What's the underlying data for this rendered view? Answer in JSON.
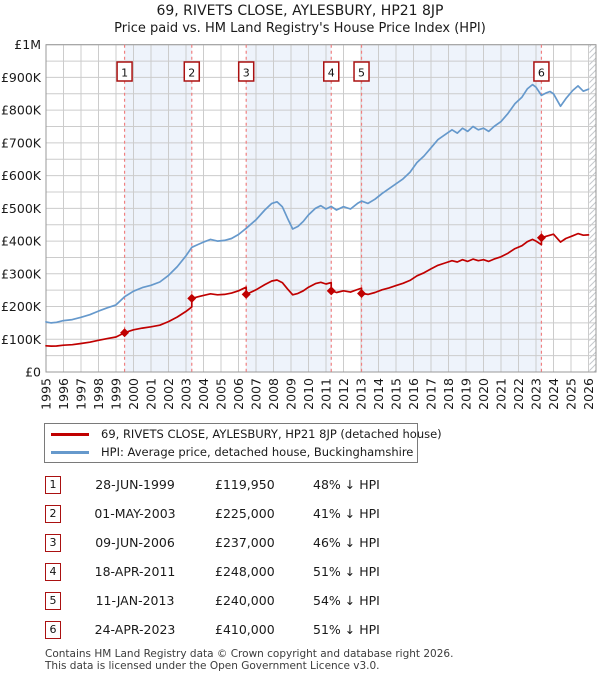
{
  "title": "69, RIVETS CLOSE, AYLESBURY, HP21 8JP",
  "subtitle": "Price paid vs. HM Land Registry's House Price Index (HPI)",
  "colors": {
    "property_red": "#c00000",
    "hpi_blue": "#6699cc",
    "band_fill": "#eef3fb",
    "grid": "#cccccc",
    "plot_border": "#999999",
    "sale_dash": "#f08080",
    "marker_box_border": "#aa1111",
    "hatch": "#c4c8cc"
  },
  "legend": {
    "entries": [
      {
        "label": "69, RIVETS CLOSE, AYLESBURY, HP21 8JP (detached house)",
        "color": "#c00000"
      },
      {
        "label": "HPI: Average price, detached house, Buckinghamshire",
        "color": "#6699cc"
      }
    ]
  },
  "chart_data": {
    "type": "line",
    "title": "69, RIVETS CLOSE, AYLESBURY, HP21 8JP",
    "subtitle": "Price paid vs. HM Land Registry's House Price Index (HPI)",
    "units": "GBP thousands",
    "xlim": [
      1995,
      2026.45
    ],
    "ylim": [
      0,
      1000
    ],
    "grid": true,
    "legend_position": "below",
    "x_ticks": [
      1995,
      1996,
      1997,
      1998,
      1999,
      2000,
      2001,
      2002,
      2003,
      2004,
      2005,
      2006,
      2007,
      2008,
      2009,
      2010,
      2011,
      2012,
      2013,
      2014,
      2015,
      2016,
      2017,
      2018,
      2019,
      2020,
      2021,
      2022,
      2023,
      2024,
      2025,
      2026
    ],
    "y_tick_values": [
      0,
      100,
      200,
      300,
      400,
      500,
      600,
      700,
      800,
      900,
      1000
    ],
    "y_tick_labels": [
      "£0",
      "£100K",
      "£200K",
      "£300K",
      "£400K",
      "£500K",
      "£600K",
      "£700K",
      "£800K",
      "£900K",
      "£1M"
    ],
    "bands": [
      [
        1999.49,
        2003.33
      ],
      [
        2006.44,
        2011.3
      ],
      [
        2013.03,
        2023.31
      ]
    ],
    "hatch_start": 2026.05,
    "series": [
      {
        "name": "HPI: Average price, detached house, Buckinghamshire",
        "color": "#6699cc",
        "points": [
          [
            1995,
            153
          ],
          [
            1995.3,
            150
          ],
          [
            1995.6,
            152
          ],
          [
            1996,
            157
          ],
          [
            1996.5,
            160
          ],
          [
            1997,
            167
          ],
          [
            1997.5,
            175
          ],
          [
            1998,
            186
          ],
          [
            1998.5,
            196
          ],
          [
            1999,
            205
          ],
          [
            1999.49,
            230
          ],
          [
            2000,
            247
          ],
          [
            2000.5,
            258
          ],
          [
            2001,
            265
          ],
          [
            2001.5,
            275
          ],
          [
            2002,
            295
          ],
          [
            2002.5,
            322
          ],
          [
            2003,
            355
          ],
          [
            2003.33,
            381
          ],
          [
            2003.7,
            390
          ],
          [
            2004,
            397
          ],
          [
            2004.4,
            405
          ],
          [
            2004.8,
            400
          ],
          [
            2005.2,
            402
          ],
          [
            2005.6,
            408
          ],
          [
            2006,
            420
          ],
          [
            2006.44,
            439
          ],
          [
            2007,
            465
          ],
          [
            2007.5,
            495
          ],
          [
            2007.9,
            515
          ],
          [
            2008.2,
            520
          ],
          [
            2008.5,
            505
          ],
          [
            2008.8,
            470
          ],
          [
            2009.1,
            437
          ],
          [
            2009.4,
            445
          ],
          [
            2009.7,
            460
          ],
          [
            2010,
            480
          ],
          [
            2010.4,
            500
          ],
          [
            2010.7,
            508
          ],
          [
            2011,
            498
          ],
          [
            2011.3,
            506
          ],
          [
            2011.6,
            495
          ],
          [
            2012,
            505
          ],
          [
            2012.4,
            498
          ],
          [
            2012.8,
            515
          ],
          [
            2013.03,
            522
          ],
          [
            2013.4,
            515
          ],
          [
            2013.8,
            528
          ],
          [
            2014.2,
            545
          ],
          [
            2014.6,
            560
          ],
          [
            2015,
            575
          ],
          [
            2015.4,
            590
          ],
          [
            2015.8,
            610
          ],
          [
            2016.2,
            640
          ],
          [
            2016.6,
            660
          ],
          [
            2017,
            685
          ],
          [
            2017.4,
            710
          ],
          [
            2017.8,
            725
          ],
          [
            2018.2,
            740
          ],
          [
            2018.5,
            730
          ],
          [
            2018.8,
            745
          ],
          [
            2019.1,
            735
          ],
          [
            2019.4,
            750
          ],
          [
            2019.7,
            740
          ],
          [
            2020,
            745
          ],
          [
            2020.3,
            735
          ],
          [
            2020.6,
            750
          ],
          [
            2021,
            765
          ],
          [
            2021.4,
            790
          ],
          [
            2021.8,
            820
          ],
          [
            2022.2,
            840
          ],
          [
            2022.5,
            865
          ],
          [
            2022.8,
            878
          ],
          [
            2023,
            870
          ],
          [
            2023.31,
            845
          ],
          [
            2023.6,
            853
          ],
          [
            2023.8,
            857
          ],
          [
            2024,
            850
          ],
          [
            2024.4,
            812
          ],
          [
            2024.7,
            835
          ],
          [
            2025.1,
            860
          ],
          [
            2025.4,
            874
          ],
          [
            2025.7,
            858
          ],
          [
            2026,
            864
          ]
        ]
      },
      {
        "name": "69, RIVETS CLOSE, AYLESBURY, HP21 8JP (detached house)",
        "color": "#c00000",
        "points": [
          [
            1995,
            80
          ],
          [
            1995.3,
            79
          ],
          [
            1995.6,
            79.5
          ],
          [
            1996,
            82
          ],
          [
            1996.5,
            83.5
          ],
          [
            1997,
            87
          ],
          [
            1997.5,
            91
          ],
          [
            1998,
            97
          ],
          [
            1998.5,
            102
          ],
          [
            1999,
            107
          ],
          [
            1999.49,
            120
          ],
          [
            2000,
            129
          ],
          [
            2000.5,
            134
          ],
          [
            2001,
            138
          ],
          [
            2001.5,
            143
          ],
          [
            2002,
            154
          ],
          [
            2002.5,
            168
          ],
          [
            2003,
            185
          ],
          [
            2003.33,
            199
          ],
          [
            2003.33,
            225
          ],
          [
            2003.7,
            230
          ],
          [
            2004,
            234
          ],
          [
            2004.4,
            239
          ],
          [
            2004.8,
            236
          ],
          [
            2005.2,
            237
          ],
          [
            2005.6,
            241
          ],
          [
            2006,
            248
          ],
          [
            2006.44,
            259
          ],
          [
            2006.44,
            237
          ],
          [
            2007,
            251
          ],
          [
            2007.5,
            267
          ],
          [
            2007.9,
            278
          ],
          [
            2008.2,
            281
          ],
          [
            2008.5,
            273
          ],
          [
            2008.8,
            254
          ],
          [
            2009.1,
            236
          ],
          [
            2009.4,
            240
          ],
          [
            2009.7,
            248
          ],
          [
            2010,
            259
          ],
          [
            2010.4,
            270
          ],
          [
            2010.7,
            274
          ],
          [
            2011,
            269
          ],
          [
            2011.3,
            273
          ],
          [
            2011.3,
            248
          ],
          [
            2011.6,
            243
          ],
          [
            2012,
            248
          ],
          [
            2012.4,
            244
          ],
          [
            2012.8,
            252
          ],
          [
            2013.03,
            256
          ],
          [
            2013.03,
            240
          ],
          [
            2013.4,
            237
          ],
          [
            2013.8,
            243
          ],
          [
            2014.2,
            251
          ],
          [
            2014.6,
            257
          ],
          [
            2015,
            264
          ],
          [
            2015.4,
            271
          ],
          [
            2015.8,
            280
          ],
          [
            2016.2,
            294
          ],
          [
            2016.6,
            303
          ],
          [
            2017,
            315
          ],
          [
            2017.4,
            326
          ],
          [
            2017.8,
            333
          ],
          [
            2018.2,
            340
          ],
          [
            2018.5,
            336
          ],
          [
            2018.8,
            343
          ],
          [
            2019.1,
            338
          ],
          [
            2019.4,
            345
          ],
          [
            2019.7,
            340
          ],
          [
            2020,
            343
          ],
          [
            2020.3,
            338
          ],
          [
            2020.6,
            345
          ],
          [
            2021,
            352
          ],
          [
            2021.4,
            363
          ],
          [
            2021.8,
            377
          ],
          [
            2022.2,
            386
          ],
          [
            2022.5,
            398
          ],
          [
            2022.8,
            405
          ],
          [
            2023,
            400
          ],
          [
            2023.31,
            389
          ],
          [
            2023.31,
            410
          ],
          [
            2023.6,
            415
          ],
          [
            2023.8,
            418
          ],
          [
            2024,
            421
          ],
          [
            2024.4,
            397
          ],
          [
            2024.7,
            408
          ],
          [
            2025.1,
            416
          ],
          [
            2025.4,
            423
          ],
          [
            2025.7,
            418
          ],
          [
            2026,
            419
          ]
        ]
      }
    ],
    "sales": [
      {
        "n": "1",
        "x": 1999.49,
        "y": 120
      },
      {
        "n": "2",
        "x": 2003.33,
        "y": 225
      },
      {
        "n": "3",
        "x": 2006.44,
        "y": 237
      },
      {
        "n": "4",
        "x": 2011.3,
        "y": 248
      },
      {
        "n": "5",
        "x": 2013.03,
        "y": 240
      },
      {
        "n": "6",
        "x": 2023.31,
        "y": 410
      }
    ]
  },
  "table": {
    "rows": [
      {
        "n": "1",
        "date": "28-JUN-1999",
        "price": "£119,950",
        "pct": "48% ↓ HPI"
      },
      {
        "n": "2",
        "date": "01-MAY-2003",
        "price": "£225,000",
        "pct": "41% ↓ HPI"
      },
      {
        "n": "3",
        "date": "09-JUN-2006",
        "price": "£237,000",
        "pct": "46% ↓ HPI"
      },
      {
        "n": "4",
        "date": "18-APR-2011",
        "price": "£248,000",
        "pct": "51% ↓ HPI"
      },
      {
        "n": "5",
        "date": "11-JAN-2013",
        "price": "£240,000",
        "pct": "54% ↓ HPI"
      },
      {
        "n": "6",
        "date": "24-APR-2023",
        "price": "£410,000",
        "pct": "51% ↓ HPI"
      }
    ]
  },
  "footer": {
    "line1": "Contains HM Land Registry data © Crown copyright and database right 2026.",
    "line2": "This data is licensed under the Open Government Licence v3.0."
  }
}
